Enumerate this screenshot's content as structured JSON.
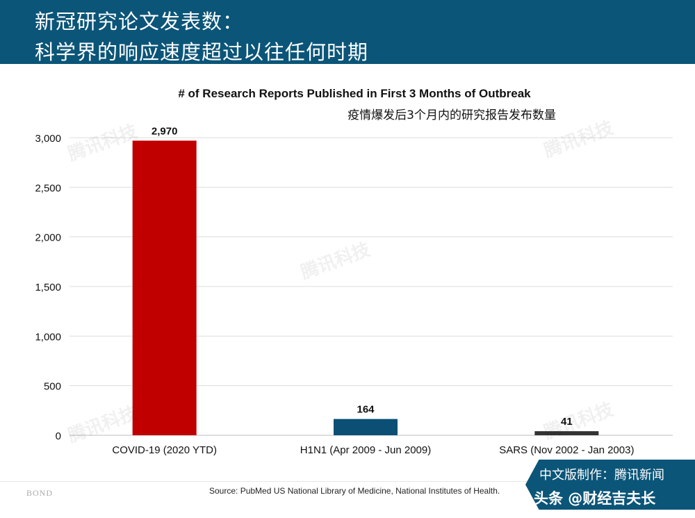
{
  "header": {
    "line1": "新冠研究论文发表数：",
    "line2": "科学界的响应速度超过以往任何时期"
  },
  "chart_data": {
    "type": "bar",
    "title": "# of Research Reports Published in First 3 Months of Outbreak",
    "subtitle": "疫情爆发后3个月内的研究报告发布数量",
    "categories": [
      "COVID-19 (2020 YTD)",
      "H1N1 (Apr 2009 - Jun 2009)",
      "SARS (Nov 2002 - Jan 2003)"
    ],
    "values": [
      2970,
      164,
      41
    ],
    "data_labels": [
      "2,970",
      "164",
      "41"
    ],
    "colors": [
      "#c00000",
      "#0b4f75",
      "#333333"
    ],
    "ylim": [
      0,
      3000
    ],
    "yticks": [
      0,
      500,
      1000,
      1500,
      2000,
      2500,
      3000
    ],
    "ytick_labels": [
      "0",
      "500",
      "1,000",
      "1,500",
      "2,000",
      "2,500",
      "3,000"
    ],
    "grid": true,
    "xlabel": "",
    "ylabel": ""
  },
  "watermark": "腾讯科技",
  "footer": {
    "logo": "BOND",
    "source": "Source: PubMed US National Library of Medicine, National Institutes of Health.",
    "badge_line1": "中文版制作：腾讯新闻",
    "badge_line2": "头条 @财经吉夫长"
  }
}
